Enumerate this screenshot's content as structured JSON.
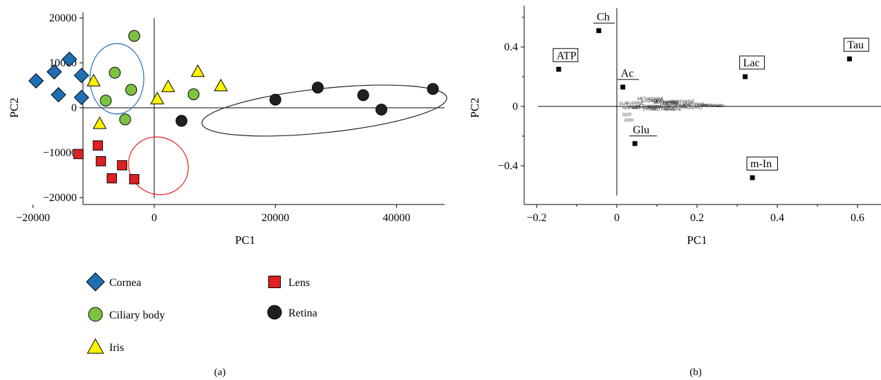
{
  "chart_data": [
    {
      "type": "scatter",
      "caption": "(a)",
      "xlabel": "PC1",
      "ylabel": "PC2",
      "xlim": [
        -25000,
        50000
      ],
      "ylim": [
        -22000,
        22000
      ],
      "xticks": [
        -20000,
        0,
        20000,
        40000
      ],
      "yticks": [
        20000,
        10000,
        0,
        -10000,
        -20000
      ],
      "xtick_labels": [
        "−20000",
        "0",
        "20000",
        "40000"
      ],
      "ytick_labels": [
        "20000",
        "10000",
        "0",
        "−10000",
        "−20000"
      ],
      "legend_position": "bottom",
      "series": [
        {
          "name": "Cornea",
          "marker": "diamond",
          "color": "#1F6FB5",
          "points": [
            [
              -19500,
              6000
            ],
            [
              -16500,
              8000
            ],
            [
              -14000,
              10800
            ],
            [
              -12000,
              7200
            ],
            [
              -15800,
              2900
            ],
            [
              -12000,
              2300
            ]
          ]
        },
        {
          "name": "Ciliary body",
          "marker": "circle",
          "color": "#7DC242",
          "points": [
            [
              -3300,
              16000
            ],
            [
              -6500,
              7800
            ],
            [
              -3800,
              4000
            ],
            [
              -8000,
              1600
            ],
            [
              -4800,
              -2600
            ],
            [
              6500,
              3000
            ]
          ]
        },
        {
          "name": "Iris",
          "marker": "triangle",
          "color": "#FFF200",
          "points": [
            [
              -10000,
              6000
            ],
            [
              -9000,
              -3500
            ],
            [
              2300,
              4700
            ],
            [
              7200,
              8100
            ],
            [
              11000,
              4900
            ],
            [
              500,
              2000
            ]
          ]
        },
        {
          "name": "Lens",
          "marker": "square",
          "color": "#E02020",
          "points": [
            [
              -12500,
              -10300
            ],
            [
              -9300,
              -8400
            ],
            [
              -8800,
              -11900
            ],
            [
              -7000,
              -15700
            ],
            [
              -5300,
              -12800
            ],
            [
              -3300,
              -15900
            ]
          ]
        },
        {
          "name": "Retina",
          "marker": "circle",
          "color": "#231F20",
          "points": [
            [
              4500,
              -2900
            ],
            [
              20000,
              1800
            ],
            [
              27000,
              4500
            ],
            [
              34500,
              2800
            ],
            [
              37500,
              -400
            ],
            [
              46000,
              4200
            ]
          ]
        }
      ],
      "ellipse_colors": [
        "#1F6FB5",
        "#E02020",
        "#231F20"
      ]
    },
    {
      "type": "scatter",
      "caption": "(b)",
      "xlabel": "PC1",
      "ylabel": "PC2",
      "xlim": [
        -0.2,
        0.66
      ],
      "ylim": [
        -0.6,
        0.65
      ],
      "xticks": [
        -0.2,
        0,
        0.2,
        0.4,
        0.6
      ],
      "yticks": [
        0.4,
        0,
        -0.4
      ],
      "xtick_labels": [
        "−0.2",
        "0",
        "0.2",
        "0.4",
        "0.6"
      ],
      "ytick_labels": [
        "0.4",
        "0",
        "−0.4"
      ],
      "points": [
        {
          "label": "Ch",
          "x": -0.045,
          "y": 0.51,
          "box": "underline"
        },
        {
          "label": "ATP",
          "x": -0.145,
          "y": 0.25,
          "box": "full"
        },
        {
          "label": "Ac",
          "x": 0.015,
          "y": 0.13,
          "box": "underline"
        },
        {
          "label": "Glu",
          "x": 0.045,
          "y": -0.25,
          "box": "underline"
        },
        {
          "label": "Lac",
          "x": 0.32,
          "y": 0.2,
          "box": "full"
        },
        {
          "label": "Tau",
          "x": 0.58,
          "y": 0.32,
          "box": "full"
        },
        {
          "label": "m-In",
          "x": 0.338,
          "y": -0.48,
          "box": "full"
        }
      ],
      "minor_labels": [
        "METHIONINE",
        "LACTATE",
        "LYSINE",
        "GLUTAMINE",
        "ALANINE",
        "PHOSPHO",
        "creatin",
        "GCP",
        "GSH",
        "GLN"
      ]
    }
  ],
  "legend": [
    {
      "name": "Cornea",
      "marker": "diamond",
      "color": "#1F6FB5"
    },
    {
      "name": "Ciliary body",
      "marker": "circle",
      "color": "#7DC242"
    },
    {
      "name": "Iris",
      "marker": "triangle",
      "color": "#FFF200"
    },
    {
      "name": "Lens",
      "marker": "square",
      "color": "#E02020"
    },
    {
      "name": "Retina",
      "marker": "circle",
      "color": "#231F20"
    }
  ]
}
